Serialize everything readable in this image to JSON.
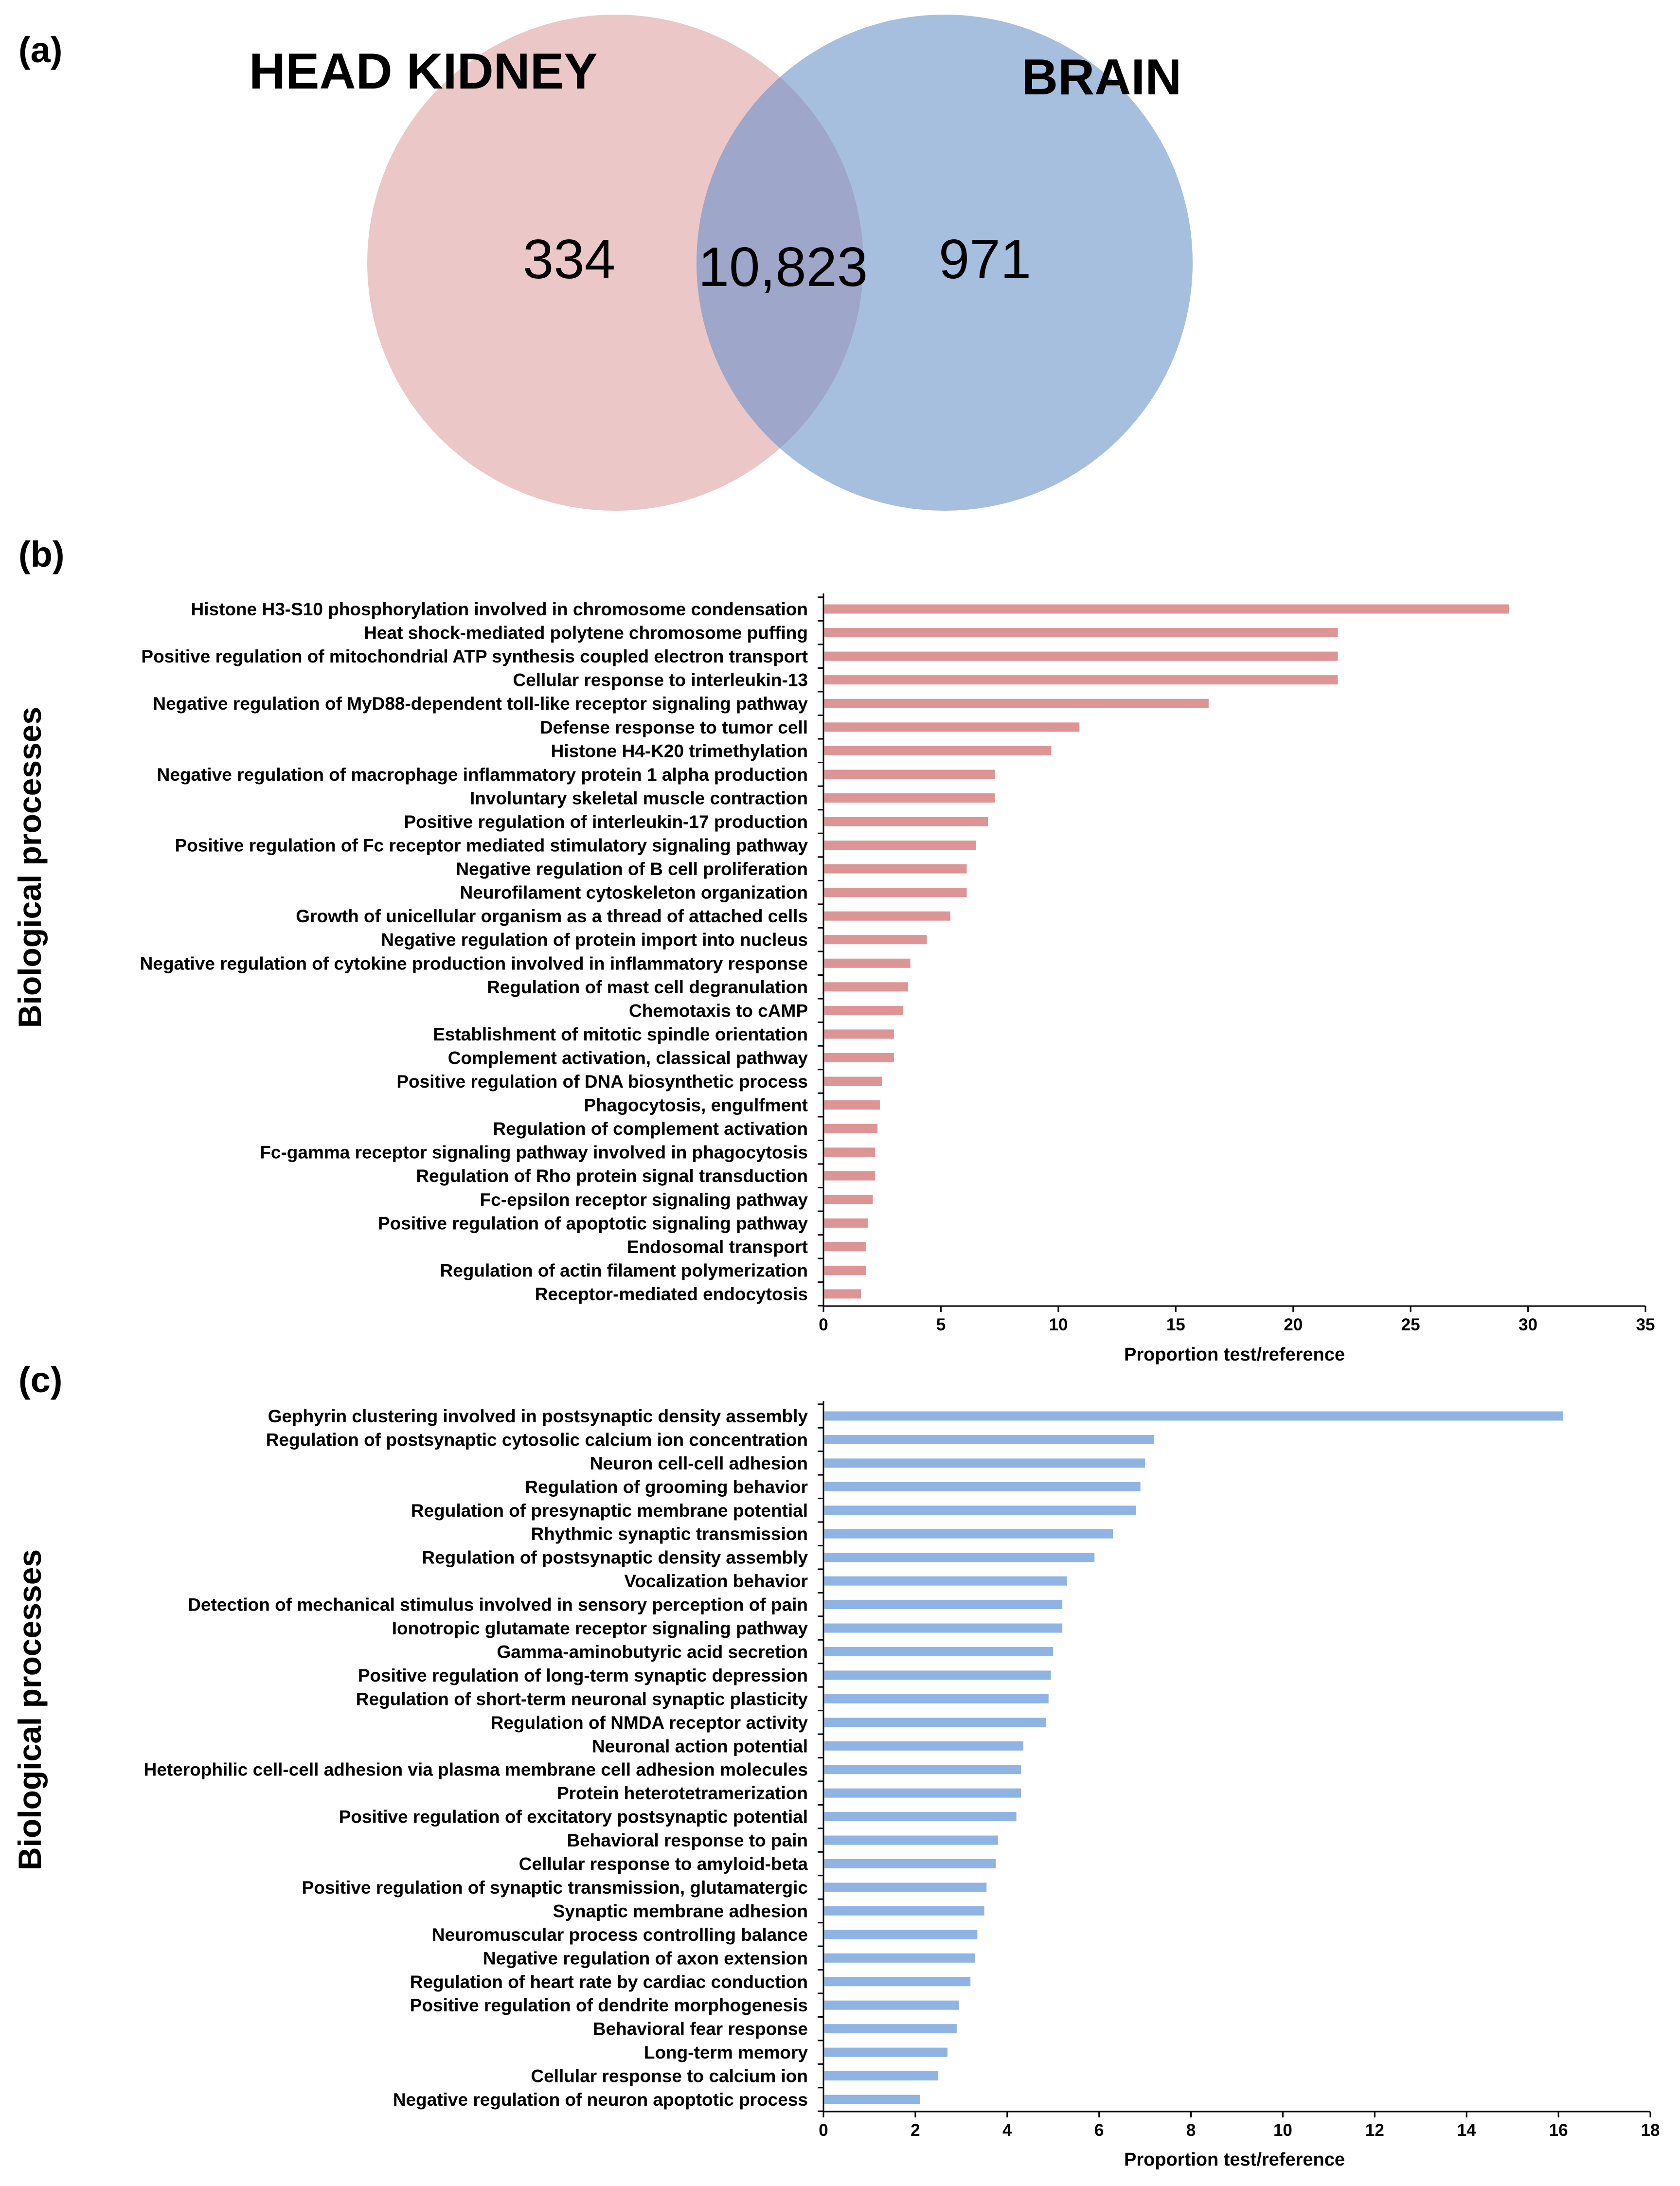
{
  "panel_a": {
    "letter": "(a)",
    "left_set": "HEAD KIDNEY",
    "right_set": "BRAIN",
    "left_only": "334",
    "overlap": "10,823",
    "right_only": "971",
    "colors": {
      "left": "#ebc7c7",
      "right": "#a6bfdf",
      "overlap": "#9ea7c9"
    }
  },
  "panel_b": {
    "letter": "(b)",
    "y_title": "Biological processes",
    "x_title": "Proportion test/reference",
    "bar_color": "#dd9495"
  },
  "panel_c": {
    "letter": "(c)",
    "y_title": "Biological processes",
    "x_title": "Proportion test/reference",
    "bar_color": "#8fb4e3"
  },
  "chart_data": [
    {
      "type": "venn",
      "sets": [
        "HEAD KIDNEY",
        "BRAIN"
      ],
      "values": {
        "HEAD KIDNEY only": 334,
        "overlap": 10823,
        "BRAIN only": 971
      }
    },
    {
      "type": "bar",
      "orientation": "horizontal",
      "xlabel": "Proportion test/reference",
      "ylabel": "Biological processes",
      "xlim": [
        0,
        35
      ],
      "xticks": [
        0,
        5,
        10,
        15,
        20,
        25,
        30,
        35
      ],
      "categories": [
        "Histone H3-S10 phosphorylation involved in chromosome condensation",
        "Heat shock-mediated polytene chromosome puffing",
        "Positive regulation of mitochondrial ATP synthesis coupled electron transport",
        "Cellular response to interleukin-13",
        "Negative regulation of MyD88-dependent toll-like receptor signaling pathway",
        "Defense response to tumor cell",
        "Histone H4-K20 trimethylation",
        "Negative regulation of macrophage inflammatory protein 1 alpha production",
        "Involuntary skeletal muscle contraction",
        "Positive regulation of interleukin-17 production",
        "Positive regulation of Fc receptor mediated stimulatory signaling pathway",
        "Negative regulation of B cell proliferation",
        "Neurofilament cytoskeleton organization",
        "Growth of unicellular organism as a thread of attached cells",
        "Negative regulation of protein import into nucleus",
        "Negative regulation of cytokine production involved in inflammatory response",
        "Regulation of mast cell degranulation",
        "Chemotaxis to cAMP",
        "Establishment of mitotic spindle orientation",
        "Complement activation, classical pathway",
        "Positive regulation of DNA biosynthetic process",
        "Phagocytosis, engulfment",
        "Regulation of complement activation",
        "Fc-gamma receptor signaling pathway involved in phagocytosis",
        "Regulation of Rho protein signal transduction",
        "Fc-epsilon receptor signaling pathway",
        "Positive regulation of apoptotic signaling pathway",
        "Endosomal transport",
        "Regulation of actin filament polymerization",
        "Receptor-mediated endocytosis"
      ],
      "values": [
        29.2,
        21.9,
        21.9,
        21.9,
        16.4,
        10.9,
        9.7,
        7.3,
        7.3,
        7.0,
        6.5,
        6.1,
        6.1,
        5.4,
        4.4,
        3.7,
        3.6,
        3.4,
        3.0,
        3.0,
        2.5,
        2.4,
        2.3,
        2.2,
        2.2,
        2.1,
        1.9,
        1.8,
        1.8,
        1.6
      ]
    },
    {
      "type": "bar",
      "orientation": "horizontal",
      "xlabel": "Proportion test/reference",
      "ylabel": "Biological processes",
      "xlim": [
        0,
        18
      ],
      "xticks": [
        0,
        2,
        4,
        6,
        8,
        10,
        12,
        14,
        16,
        18
      ],
      "categories": [
        "Gephyrin clustering involved in postsynaptic density assembly",
        "Regulation of postsynaptic cytosolic calcium ion concentration",
        "Neuron cell-cell adhesion",
        "Regulation of grooming behavior",
        "Regulation of presynaptic membrane potential",
        "Rhythmic synaptic transmission",
        "Regulation of postsynaptic density assembly",
        "Vocalization behavior",
        "Detection of mechanical stimulus involved in sensory perception of pain",
        "Ionotropic glutamate receptor signaling pathway",
        "Gamma-aminobutyric acid secretion",
        "Positive regulation of long-term synaptic depression",
        "Regulation of short-term neuronal synaptic plasticity",
        "Regulation of NMDA receptor activity",
        "Neuronal action potential",
        "Heterophilic cell-cell adhesion via plasma membrane cell adhesion molecules",
        "Protein heterotetramerization",
        "Positive regulation of excitatory postsynaptic potential",
        "Behavioral response to pain",
        "Cellular response to amyloid-beta",
        "Positive regulation of synaptic transmission, glutamatergic",
        "Synaptic membrane adhesion",
        "Neuromuscular process controlling balance",
        "Negative regulation of axon extension",
        "Regulation of heart rate by cardiac conduction",
        "Positive regulation of dendrite morphogenesis",
        "Behavioral fear response",
        "Long-term memory",
        "Cellular response to calcium ion",
        "Negative regulation of neuron apoptotic process"
      ],
      "values": [
        16.1,
        7.2,
        7.0,
        6.9,
        6.8,
        6.3,
        5.9,
        5.3,
        5.2,
        5.2,
        5.0,
        4.95,
        4.9,
        4.85,
        4.35,
        4.3,
        4.3,
        4.2,
        3.8,
        3.75,
        3.55,
        3.5,
        3.35,
        3.3,
        3.2,
        2.95,
        2.9,
        2.7,
        2.5,
        2.1
      ]
    }
  ]
}
